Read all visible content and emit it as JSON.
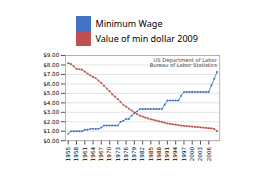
{
  "chart_data": {
    "type": "line",
    "x": [
      1955,
      1956,
      1957,
      1958,
      1959,
      1960,
      1961,
      1962,
      1963,
      1964,
      1965,
      1966,
      1967,
      1968,
      1969,
      1970,
      1971,
      1972,
      1973,
      1974,
      1975,
      1976,
      1977,
      1978,
      1979,
      1980,
      1981,
      1982,
      1983,
      1984,
      1985,
      1986,
      1987,
      1988,
      1989,
      1990,
      1991,
      1992,
      1993,
      1994,
      1995,
      1996,
      1997,
      1998,
      1999,
      2000,
      2001,
      2002,
      2003,
      2004,
      2005,
      2006,
      2007,
      2008,
      2009
    ],
    "series": [
      {
        "name": "Minimum Wage",
        "color": "#4472C4",
        "marker": "circle",
        "values": [
          0.75,
          1.0,
          1.0,
          1.0,
          1.0,
          1.0,
          1.15,
          1.15,
          1.25,
          1.25,
          1.25,
          1.25,
          1.4,
          1.6,
          1.6,
          1.6,
          1.6,
          1.6,
          1.6,
          2.0,
          2.1,
          2.3,
          2.3,
          2.65,
          2.9,
          3.1,
          3.35,
          3.35,
          3.35,
          3.35,
          3.35,
          3.35,
          3.35,
          3.35,
          3.35,
          3.8,
          4.25,
          4.25,
          4.25,
          4.25,
          4.25,
          4.75,
          5.15,
          5.15,
          5.15,
          5.15,
          5.15,
          5.15,
          5.15,
          5.15,
          5.15,
          5.15,
          5.85,
          6.55,
          7.25
        ]
      },
      {
        "name": "Value of min dollar 2009",
        "color": "#C0504D",
        "marker": "square",
        "values": [
          8.2,
          8.1,
          7.85,
          7.6,
          7.55,
          7.5,
          7.3,
          7.1,
          6.9,
          6.75,
          6.6,
          6.35,
          6.1,
          5.8,
          5.5,
          5.25,
          4.9,
          4.65,
          4.4,
          4.1,
          3.8,
          3.6,
          3.4,
          3.2,
          3.0,
          2.8,
          2.65,
          2.55,
          2.45,
          2.35,
          2.25,
          2.2,
          2.12,
          2.05,
          1.98,
          1.9,
          1.82,
          1.77,
          1.73,
          1.7,
          1.65,
          1.6,
          1.57,
          1.54,
          1.52,
          1.49,
          1.46,
          1.44,
          1.42,
          1.38,
          1.35,
          1.32,
          1.3,
          1.25,
          1.0
        ]
      }
    ],
    "annotations": [
      "US Department of Labor",
      "Bureau of Labor Statistics"
    ],
    "xlim": [
      1954,
      2010
    ],
    "xticks": [
      1955,
      1958,
      1961,
      1964,
      1967,
      1970,
      1973,
      1976,
      1979,
      1982,
      1985,
      1988,
      1991,
      1994,
      1997,
      2000,
      2003,
      2006
    ],
    "ylim": [
      0.0,
      9.0
    ],
    "yticks": [
      {
        "value": 0,
        "label": "$0.00"
      },
      {
        "value": 1,
        "label": "$1.00"
      },
      {
        "value": 2,
        "label": "$2.00"
      },
      {
        "value": 3,
        "label": "$3.00"
      },
      {
        "value": 4,
        "label": "$4.00"
      },
      {
        "value": 5,
        "label": "$5.00"
      },
      {
        "value": 6,
        "label": "$6.00"
      },
      {
        "value": 7,
        "label": "$7.00"
      },
      {
        "value": 8,
        "label": "$8.00"
      },
      {
        "value": 9,
        "label": "$9.00"
      }
    ],
    "grid": true,
    "legend": "top"
  }
}
